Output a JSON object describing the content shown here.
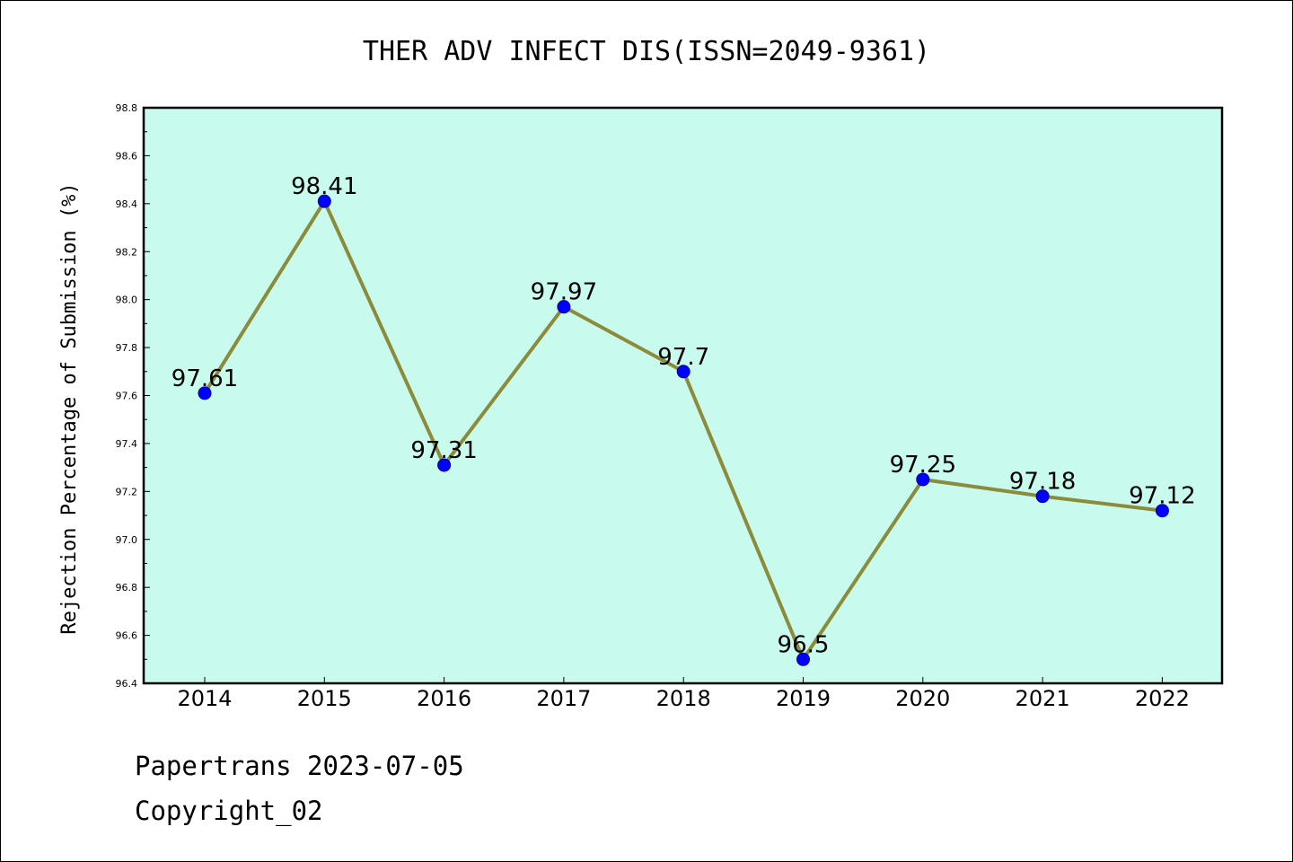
{
  "chart_data": {
    "type": "line",
    "title": "THER ADV INFECT DIS(ISSN=2049-9361)",
    "xlabel": "",
    "ylabel": "Rejection Percentage of Submission (%)",
    "categories": [
      "2014",
      "2015",
      "2016",
      "2017",
      "2018",
      "2019",
      "2020",
      "2021",
      "2022"
    ],
    "series": [
      {
        "values": [
          97.61,
          98.41,
          97.31,
          97.97,
          97.7,
          96.5,
          97.25,
          97.18,
          97.12
        ],
        "labels": [
          "97.61",
          "98.41",
          "97.31",
          "97.97",
          "97.7",
          "96.5",
          "97.25",
          "97.18",
          "97.12"
        ]
      }
    ],
    "ylim": [
      96.4,
      98.8
    ],
    "yticks": [
      "96.4",
      "96.6",
      "96.8",
      "97.0",
      "97.2",
      "97.4",
      "97.6",
      "97.8",
      "98.0",
      "98.2",
      "98.4",
      "98.6",
      "98.8"
    ],
    "grid": false,
    "legend": "none",
    "colors": {
      "plot_background": "#c8faee",
      "line": "#8b8b3a",
      "marker": "#0000ff"
    }
  },
  "footer": {
    "line1": "Papertrans 2023-07-05",
    "line2": "Copyright_02"
  }
}
